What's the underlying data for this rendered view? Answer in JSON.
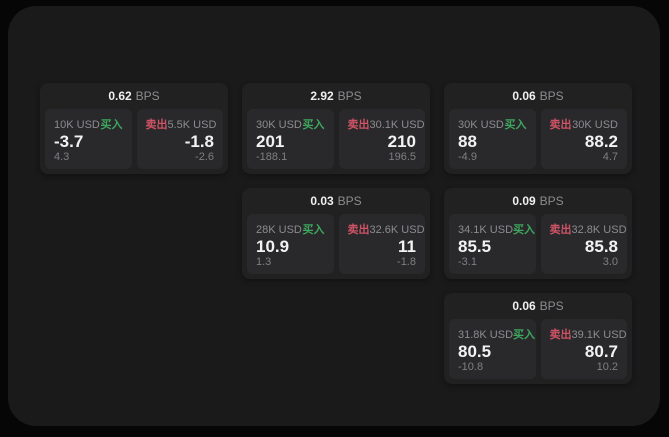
{
  "page": {
    "bps_label": "BPS",
    "buy_label": "买入",
    "sell_label": "卖出"
  },
  "colors": {
    "buy": "#3ea75d",
    "sell": "#cd5365",
    "panel_bg": "#1a1a1b",
    "card_bg": "#212122",
    "subpanel_bg": "#29292b"
  },
  "cards": [
    {
      "bps": "0.62",
      "row": 1,
      "col": 1,
      "buy": {
        "amount": "10K USD",
        "value": "-3.7",
        "delta": "4.3"
      },
      "sell": {
        "amount": "5.5K USD",
        "value": "-1.8",
        "delta": "-2.6"
      }
    },
    {
      "bps": "2.92",
      "row": 1,
      "col": 2,
      "buy": {
        "amount": "30K USD",
        "value": "201",
        "delta": "-188.1"
      },
      "sell": {
        "amount": "30.1K USD",
        "value": "210",
        "delta": "196.5"
      }
    },
    {
      "bps": "0.06",
      "row": 1,
      "col": 3,
      "buy": {
        "amount": "30K USD",
        "value": "88",
        "delta": "-4.9"
      },
      "sell": {
        "amount": "30K USD",
        "value": "88.2",
        "delta": "4.7"
      }
    },
    {
      "bps": "0.03",
      "row": 2,
      "col": 2,
      "buy": {
        "amount": "28K USD",
        "value": "10.9",
        "delta": "1.3"
      },
      "sell": {
        "amount": "32.6K USD",
        "value": "11",
        "delta": "-1.8"
      }
    },
    {
      "bps": "0.09",
      "row": 2,
      "col": 3,
      "buy": {
        "amount": "34.1K USD",
        "value": "85.5",
        "delta": "-3.1"
      },
      "sell": {
        "amount": "32.8K USD",
        "value": "85.8",
        "delta": "3.0"
      }
    },
    {
      "bps": "0.06",
      "row": 3,
      "col": 3,
      "buy": {
        "amount": "31.8K USD",
        "value": "80.5",
        "delta": "-10.8"
      },
      "sell": {
        "amount": "39.1K USD",
        "value": "80.7",
        "delta": "10.2"
      }
    }
  ]
}
